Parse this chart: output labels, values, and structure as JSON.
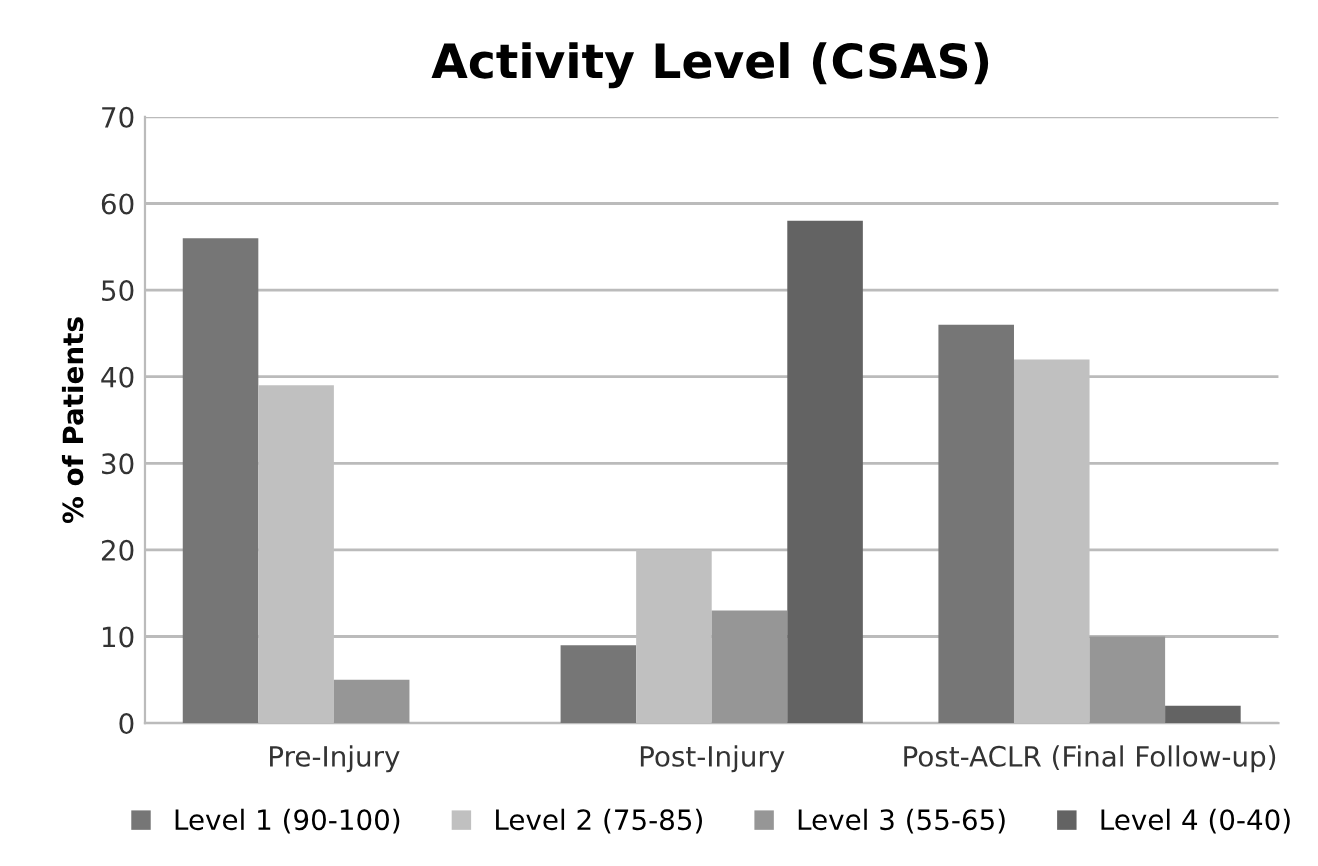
{
  "chart_data": {
    "type": "bar",
    "title": "Activity Level (CSAS)",
    "ylabel": "% of Patients",
    "categories": [
      "Pre-Injury",
      "Post-Injury",
      "Post-ACLR (Final Follow-up)"
    ],
    "series": [
      {
        "name": "Level 1 (90-100)",
        "color": "#767676",
        "values": [
          56,
          9,
          46
        ]
      },
      {
        "name": "Level 2 (75-85)",
        "color": "#c0c0c0",
        "values": [
          39,
          20,
          42
        ]
      },
      {
        "name": "Level 3 (55-65)",
        "color": "#969696",
        "values": [
          5,
          13,
          10
        ]
      },
      {
        "name": "Level 4 (0-40)",
        "color": "#636363",
        "values": [
          0,
          58,
          2
        ]
      }
    ],
    "ylim": [
      0,
      70
    ],
    "yticks": [
      0,
      10,
      20,
      30,
      40,
      50,
      60,
      70
    ],
    "grid": "y",
    "legend": "bottom"
  }
}
